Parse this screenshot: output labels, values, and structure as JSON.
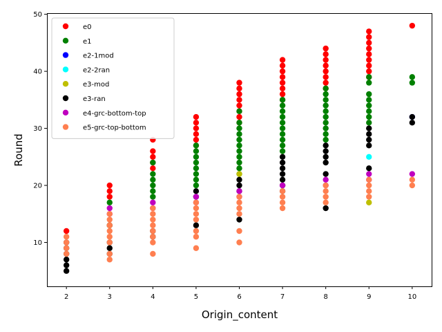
{
  "chart_data": {
    "type": "scatter",
    "title": "",
    "xlabel": "Origin_content",
    "ylabel": "Round",
    "xlim": [
      1.55,
      10.45
    ],
    "ylim": [
      2.3,
      50.2
    ],
    "xticks": [
      2,
      3,
      4,
      5,
      6,
      7,
      8,
      9,
      10
    ],
    "yticks": [
      10,
      20,
      30,
      40,
      50
    ],
    "grid": false,
    "legend_position": "top-left",
    "series": [
      {
        "name": "e0",
        "color": "#ff0000",
        "points": [
          [
            2,
            12
          ],
          [
            3,
            18
          ],
          [
            3,
            19
          ],
          [
            3,
            20
          ],
          [
            4,
            23
          ],
          [
            4,
            24
          ],
          [
            4,
            25
          ],
          [
            4,
            26
          ],
          [
            4,
            28
          ],
          [
            5,
            27
          ],
          [
            5,
            28
          ],
          [
            5,
            29
          ],
          [
            5,
            30
          ],
          [
            5,
            31
          ],
          [
            5,
            32
          ],
          [
            6,
            31
          ],
          [
            6,
            32
          ],
          [
            6,
            33
          ],
          [
            6,
            34
          ],
          [
            6,
            35
          ],
          [
            6,
            36
          ],
          [
            6,
            37
          ],
          [
            6,
            38
          ],
          [
            7,
            35
          ],
          [
            7,
            36
          ],
          [
            7,
            37
          ],
          [
            7,
            38
          ],
          [
            7,
            39
          ],
          [
            7,
            40
          ],
          [
            7,
            41
          ],
          [
            7,
            42
          ],
          [
            8,
            37
          ],
          [
            8,
            38
          ],
          [
            8,
            39
          ],
          [
            8,
            40
          ],
          [
            8,
            41
          ],
          [
            8,
            42
          ],
          [
            8,
            43
          ],
          [
            8,
            44
          ],
          [
            9,
            39
          ],
          [
            9,
            40
          ],
          [
            9,
            41
          ],
          [
            9,
            42
          ],
          [
            9,
            43
          ],
          [
            9,
            44
          ],
          [
            9,
            45
          ],
          [
            9,
            46
          ],
          [
            9,
            47
          ],
          [
            10,
            48
          ]
        ]
      },
      {
        "name": "e1",
        "color": "#008000",
        "points": [
          [
            3,
            17
          ],
          [
            4,
            18
          ],
          [
            4,
            19
          ],
          [
            4,
            20
          ],
          [
            4,
            21
          ],
          [
            4,
            22
          ],
          [
            4,
            24
          ],
          [
            5,
            20
          ],
          [
            5,
            21
          ],
          [
            5,
            22
          ],
          [
            5,
            23
          ],
          [
            5,
            24
          ],
          [
            5,
            25
          ],
          [
            5,
            26
          ],
          [
            5,
            27
          ],
          [
            6,
            22
          ],
          [
            6,
            23
          ],
          [
            6,
            24
          ],
          [
            6,
            25
          ],
          [
            6,
            26
          ],
          [
            6,
            27
          ],
          [
            6,
            28
          ],
          [
            6,
            29
          ],
          [
            6,
            30
          ],
          [
            6,
            31
          ],
          [
            6,
            33
          ],
          [
            7,
            26
          ],
          [
            7,
            27
          ],
          [
            7,
            28
          ],
          [
            7,
            29
          ],
          [
            7,
            30
          ],
          [
            7,
            31
          ],
          [
            7,
            32
          ],
          [
            7,
            33
          ],
          [
            7,
            34
          ],
          [
            7,
            35
          ],
          [
            8,
            28
          ],
          [
            8,
            29
          ],
          [
            8,
            30
          ],
          [
            8,
            31
          ],
          [
            8,
            32
          ],
          [
            8,
            33
          ],
          [
            8,
            34
          ],
          [
            8,
            35
          ],
          [
            8,
            36
          ],
          [
            8,
            37
          ],
          [
            9,
            31
          ],
          [
            9,
            32
          ],
          [
            9,
            33
          ],
          [
            9,
            34
          ],
          [
            9,
            35
          ],
          [
            9,
            36
          ],
          [
            9,
            38
          ],
          [
            9,
            39
          ],
          [
            10,
            38
          ],
          [
            10,
            39
          ]
        ]
      },
      {
        "name": "e2-1mod",
        "color": "#0000ff",
        "points": [
          [
            10,
            32
          ]
        ]
      },
      {
        "name": "e2-2ran",
        "color": "#00ffff",
        "points": [
          [
            9,
            25
          ]
        ]
      },
      {
        "name": "e3-mod",
        "color": "#bfbf00",
        "points": [
          [
            3,
            13
          ],
          [
            6,
            22
          ],
          [
            9,
            17
          ]
        ]
      },
      {
        "name": "e3-ran",
        "color": "#000000",
        "points": [
          [
            2,
            5
          ],
          [
            2,
            6
          ],
          [
            2,
            7
          ],
          [
            2,
            8
          ],
          [
            2,
            9
          ],
          [
            2,
            10
          ],
          [
            3,
            8
          ],
          [
            3,
            9
          ],
          [
            3,
            10
          ],
          [
            3,
            13
          ],
          [
            4,
            11
          ],
          [
            4,
            12
          ],
          [
            5,
            13
          ],
          [
            5,
            18
          ],
          [
            5,
            19
          ],
          [
            6,
            14
          ],
          [
            6,
            19
          ],
          [
            6,
            20
          ],
          [
            6,
            21
          ],
          [
            7,
            19
          ],
          [
            7,
            20
          ],
          [
            7,
            21
          ],
          [
            7,
            22
          ],
          [
            7,
            23
          ],
          [
            7,
            24
          ],
          [
            7,
            25
          ],
          [
            8,
            16
          ],
          [
            8,
            22
          ],
          [
            8,
            24
          ],
          [
            8,
            25
          ],
          [
            8,
            26
          ],
          [
            8,
            27
          ],
          [
            9,
            23
          ],
          [
            9,
            27
          ],
          [
            9,
            28
          ],
          [
            9,
            29
          ],
          [
            9,
            30
          ],
          [
            10,
            31
          ],
          [
            10,
            32
          ]
        ]
      },
      {
        "name": "e4-grc-bottom-top",
        "color": "#bf00bf",
        "points": [
          [
            3,
            15
          ],
          [
            3,
            16
          ],
          [
            4,
            16
          ],
          [
            4,
            17
          ],
          [
            5,
            17
          ],
          [
            5,
            18
          ],
          [
            6,
            18
          ],
          [
            6,
            19
          ],
          [
            7,
            20
          ],
          [
            8,
            20
          ],
          [
            8,
            21
          ],
          [
            9,
            21
          ],
          [
            9,
            22
          ],
          [
            10,
            22
          ]
        ]
      },
      {
        "name": "e5-grc-top-bottom",
        "color": "#ff7f50",
        "points": [
          [
            2,
            8
          ],
          [
            2,
            9
          ],
          [
            2,
            10
          ],
          [
            2,
            11
          ],
          [
            3,
            7
          ],
          [
            3,
            8
          ],
          [
            3,
            10
          ],
          [
            3,
            11
          ],
          [
            3,
            12
          ],
          [
            3,
            13
          ],
          [
            3,
            14
          ],
          [
            3,
            15
          ],
          [
            4,
            8
          ],
          [
            4,
            10
          ],
          [
            4,
            11
          ],
          [
            4,
            12
          ],
          [
            4,
            13
          ],
          [
            4,
            14
          ],
          [
            4,
            15
          ],
          [
            4,
            16
          ],
          [
            5,
            9
          ],
          [
            5,
            11
          ],
          [
            5,
            12
          ],
          [
            5,
            14
          ],
          [
            5,
            15
          ],
          [
            5,
            16
          ],
          [
            5,
            17
          ],
          [
            6,
            10
          ],
          [
            6,
            12
          ],
          [
            6,
            15
          ],
          [
            6,
            16
          ],
          [
            6,
            17
          ],
          [
            6,
            18
          ],
          [
            7,
            16
          ],
          [
            7,
            17
          ],
          [
            7,
            18
          ],
          [
            7,
            19
          ],
          [
            8,
            17
          ],
          [
            8,
            18
          ],
          [
            8,
            19
          ],
          [
            8,
            20
          ],
          [
            9,
            18
          ],
          [
            9,
            19
          ],
          [
            9,
            20
          ],
          [
            9,
            21
          ],
          [
            10,
            20
          ],
          [
            10,
            21
          ]
        ]
      }
    ]
  }
}
